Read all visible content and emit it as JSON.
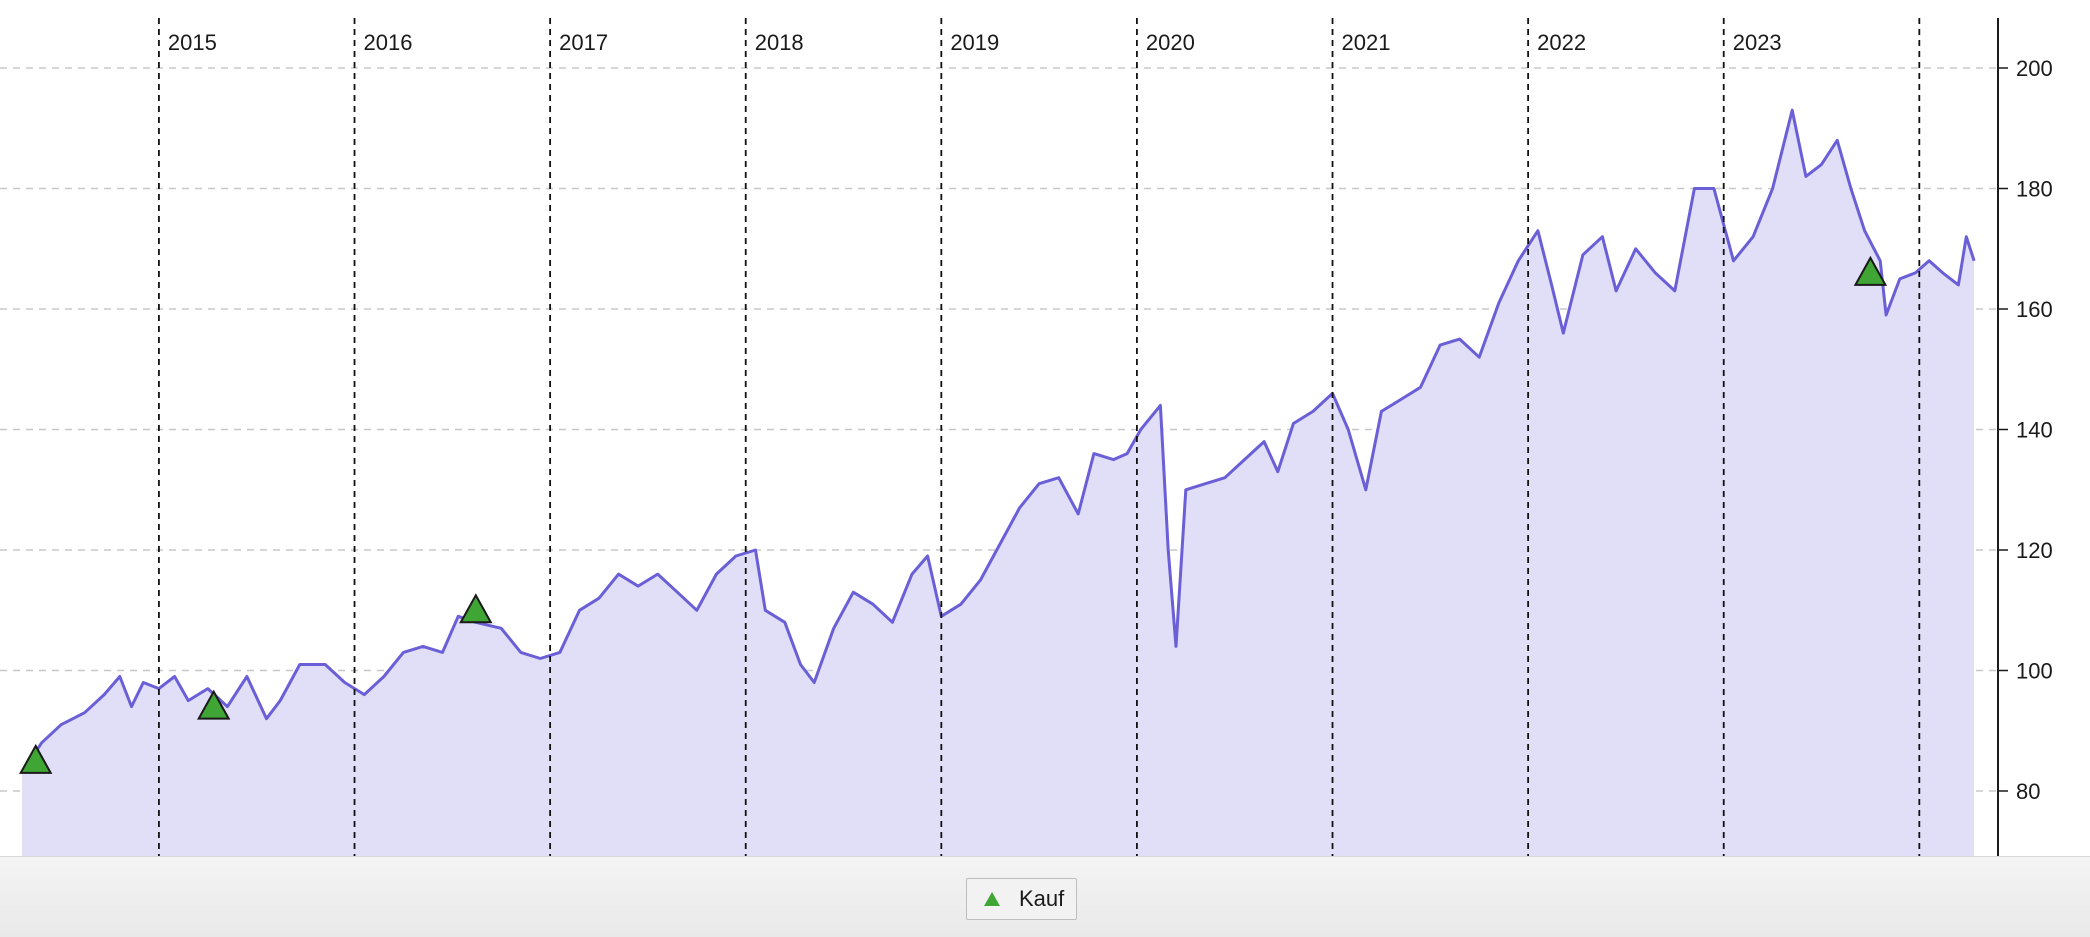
{
  "chart_data": {
    "type": "area",
    "title": "",
    "xlabel": "",
    "ylabel": "",
    "x_range": [
      2014.3,
      2024.3
    ],
    "ylim": [
      70,
      208
    ],
    "y_ticks": [
      80,
      100,
      120,
      140,
      160,
      180,
      200
    ],
    "year_markers": [
      {
        "x": 2015.0,
        "label": "2015"
      },
      {
        "x": 2016.0,
        "label": "2016"
      },
      {
        "x": 2017.0,
        "label": "2017"
      },
      {
        "x": 2018.0,
        "label": "2018"
      },
      {
        "x": 2019.0,
        "label": "2019"
      },
      {
        "x": 2020.0,
        "label": "2020"
      },
      {
        "x": 2021.0,
        "label": "2021"
      },
      {
        "x": 2022.0,
        "label": "2022"
      },
      {
        "x": 2023.0,
        "label": "2023"
      },
      {
        "x": 2024.0,
        "label": ""
      }
    ],
    "grid": "horizontal dashed",
    "colors": {
      "line": "#6a5fd6",
      "fill": "#e0dff7",
      "marker": "#3fa535",
      "marker_outline": "#1a1a1a"
    },
    "series": [
      {
        "points": [
          [
            2014.3,
            83
          ],
          [
            2014.4,
            88
          ],
          [
            2014.5,
            91
          ],
          [
            2014.62,
            93
          ],
          [
            2014.72,
            96
          ],
          [
            2014.8,
            99
          ],
          [
            2014.86,
            94
          ],
          [
            2014.92,
            98
          ],
          [
            2015.0,
            97
          ],
          [
            2015.08,
            99
          ],
          [
            2015.15,
            95
          ],
          [
            2015.25,
            97
          ],
          [
            2015.35,
            94
          ],
          [
            2015.45,
            99
          ],
          [
            2015.55,
            92
          ],
          [
            2015.62,
            95
          ],
          [
            2015.72,
            101
          ],
          [
            2015.85,
            101
          ],
          [
            2015.95,
            98
          ],
          [
            2016.05,
            96
          ],
          [
            2016.15,
            99
          ],
          [
            2016.25,
            103
          ],
          [
            2016.35,
            104
          ],
          [
            2016.45,
            103
          ],
          [
            2016.53,
            109
          ],
          [
            2016.62,
            108
          ],
          [
            2016.75,
            107
          ],
          [
            2016.85,
            103
          ],
          [
            2016.95,
            102
          ],
          [
            2017.05,
            103
          ],
          [
            2017.15,
            110
          ],
          [
            2017.25,
            112
          ],
          [
            2017.35,
            116
          ],
          [
            2017.45,
            114
          ],
          [
            2017.55,
            116
          ],
          [
            2017.65,
            113
          ],
          [
            2017.75,
            110
          ],
          [
            2017.85,
            116
          ],
          [
            2017.95,
            119
          ],
          [
            2018.05,
            120
          ],
          [
            2018.1,
            110
          ],
          [
            2018.2,
            108
          ],
          [
            2018.28,
            101
          ],
          [
            2018.35,
            98
          ],
          [
            2018.45,
            107
          ],
          [
            2018.55,
            113
          ],
          [
            2018.65,
            111
          ],
          [
            2018.75,
            108
          ],
          [
            2018.85,
            116
          ],
          [
            2018.93,
            119
          ],
          [
            2019.0,
            109
          ],
          [
            2019.1,
            111
          ],
          [
            2019.2,
            115
          ],
          [
            2019.3,
            121
          ],
          [
            2019.4,
            127
          ],
          [
            2019.5,
            131
          ],
          [
            2019.6,
            132
          ],
          [
            2019.7,
            126
          ],
          [
            2019.78,
            136
          ],
          [
            2019.88,
            135
          ],
          [
            2019.95,
            136
          ],
          [
            2020.02,
            140
          ],
          [
            2020.12,
            144
          ],
          [
            2020.16,
            120
          ],
          [
            2020.2,
            104
          ],
          [
            2020.25,
            130
          ],
          [
            2020.35,
            131
          ],
          [
            2020.45,
            132
          ],
          [
            2020.55,
            135
          ],
          [
            2020.65,
            138
          ],
          [
            2020.72,
            133
          ],
          [
            2020.8,
            141
          ],
          [
            2020.9,
            143
          ],
          [
            2021.0,
            146
          ],
          [
            2021.08,
            140
          ],
          [
            2021.17,
            130
          ],
          [
            2021.25,
            143
          ],
          [
            2021.35,
            145
          ],
          [
            2021.45,
            147
          ],
          [
            2021.55,
            154
          ],
          [
            2021.65,
            155
          ],
          [
            2021.75,
            152
          ],
          [
            2021.85,
            161
          ],
          [
            2021.95,
            168
          ],
          [
            2022.05,
            173
          ],
          [
            2022.12,
            164
          ],
          [
            2022.18,
            156
          ],
          [
            2022.28,
            169
          ],
          [
            2022.38,
            172
          ],
          [
            2022.45,
            163
          ],
          [
            2022.55,
            170
          ],
          [
            2022.65,
            166
          ],
          [
            2022.75,
            163
          ],
          [
            2022.85,
            180
          ],
          [
            2022.95,
            180
          ],
          [
            2023.05,
            168
          ],
          [
            2023.15,
            172
          ],
          [
            2023.25,
            180
          ],
          [
            2023.35,
            193
          ],
          [
            2023.42,
            182
          ],
          [
            2023.5,
            184
          ],
          [
            2023.58,
            188
          ],
          [
            2023.65,
            180
          ],
          [
            2023.72,
            173
          ],
          [
            2023.8,
            168
          ],
          [
            2023.83,
            159
          ],
          [
            2023.9,
            165
          ],
          [
            2023.98,
            166
          ],
          [
            2024.05,
            168
          ],
          [
            2024.12,
            166
          ],
          [
            2024.2,
            164
          ],
          [
            2024.24,
            172
          ],
          [
            2024.28,
            168
          ]
        ]
      }
    ],
    "markers": [
      {
        "x": 2014.37,
        "y": 85,
        "kind": "buy"
      },
      {
        "x": 2015.28,
        "y": 94,
        "kind": "buy"
      },
      {
        "x": 2016.62,
        "y": 110,
        "kind": "buy"
      },
      {
        "x": 2023.75,
        "y": 166,
        "kind": "buy"
      }
    ]
  },
  "legend": {
    "label": "Kauf"
  }
}
